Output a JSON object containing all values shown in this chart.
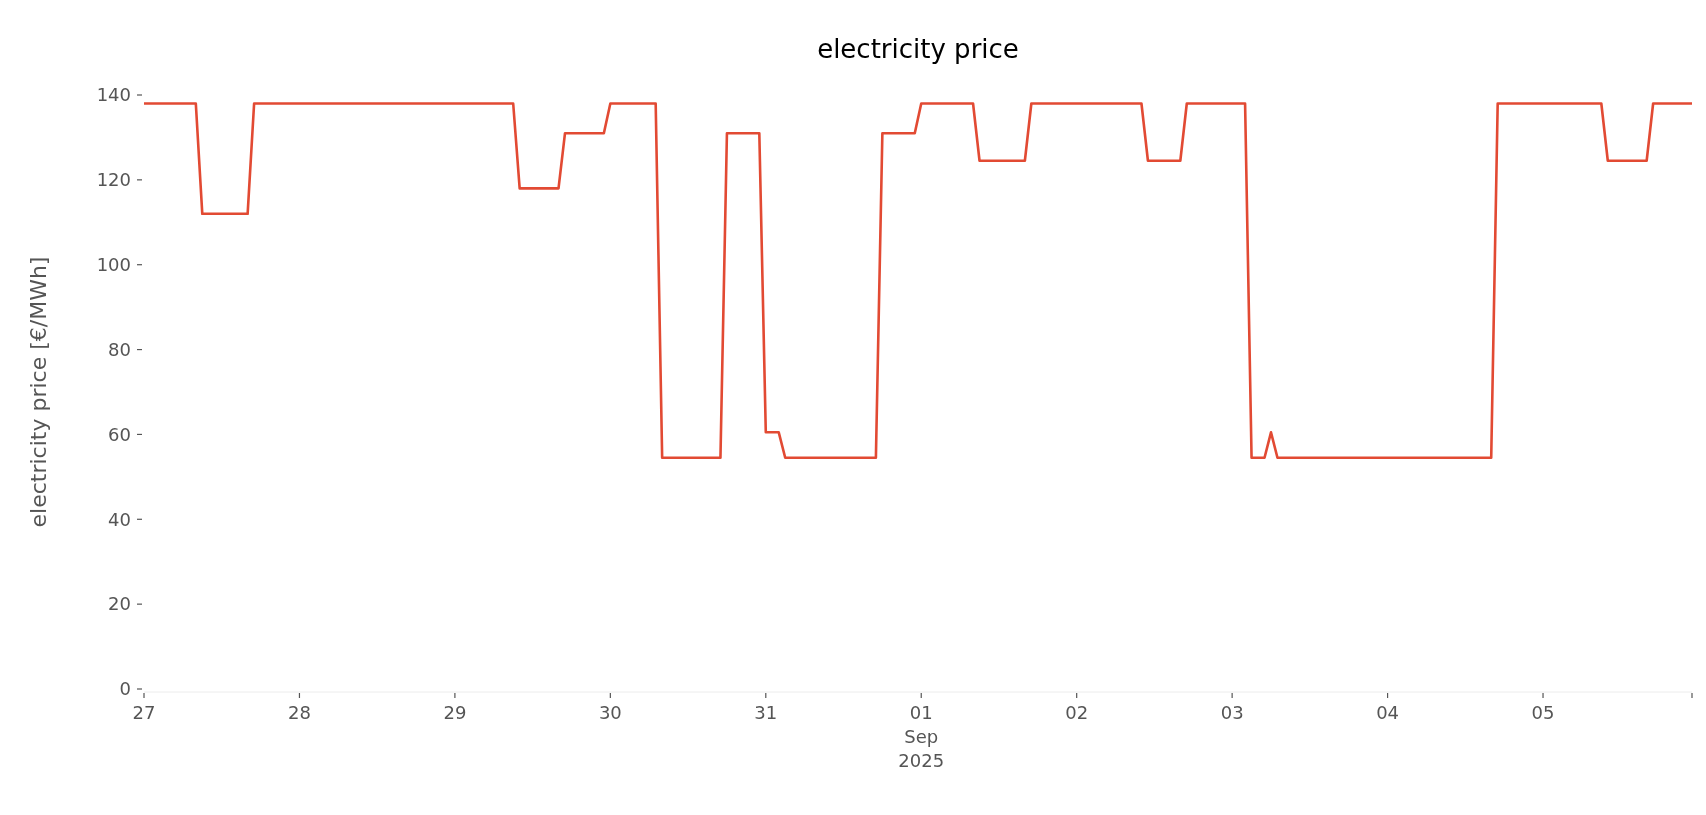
{
  "chart_data": {
    "type": "line",
    "title": "electricity price",
    "ylabel": "electricity price [€/MWh]",
    "x": [
      "2025-08-27T00:00",
      "2025-08-27T08:00",
      "2025-08-27T09:00",
      "2025-08-27T16:00",
      "2025-08-27T17:00",
      "2025-08-29T09:00",
      "2025-08-29T10:00",
      "2025-08-29T16:00",
      "2025-08-29T17:00",
      "2025-08-29T23:00",
      "2025-08-30T00:00",
      "2025-08-30T07:00",
      "2025-08-30T08:00",
      "2025-08-30T17:00",
      "2025-08-30T18:00",
      "2025-08-30T23:00",
      "2025-08-31T00:00",
      "2025-08-31T02:00",
      "2025-08-31T03:00",
      "2025-08-31T17:00",
      "2025-08-31T18:00",
      "2025-08-31T23:00",
      "2025-09-01T00:00",
      "2025-09-01T08:00",
      "2025-09-01T09:00",
      "2025-09-01T16:00",
      "2025-09-01T17:00",
      "2025-09-02T10:00",
      "2025-09-02T11:00",
      "2025-09-02T16:00",
      "2025-09-02T17:00",
      "2025-09-03T02:00",
      "2025-09-03T03:00",
      "2025-09-03T05:00",
      "2025-09-03T06:00",
      "2025-09-03T07:00",
      "2025-09-04T16:00",
      "2025-09-04T17:00",
      "2025-09-05T09:00",
      "2025-09-05T10:00",
      "2025-09-05T16:00",
      "2025-09-05T17:00",
      "2025-09-05T23:00"
    ],
    "series": [
      {
        "color": "#e24a33",
        "values": [
          138,
          138,
          112,
          112,
          138,
          138,
          118,
          118,
          131,
          131,
          138,
          138,
          54.5,
          54.5,
          131,
          131,
          60.5,
          60.5,
          54.5,
          54.5,
          131,
          131,
          138,
          138,
          124.5,
          124.5,
          138,
          138,
          124.5,
          124.5,
          138,
          138,
          54.5,
          54.5,
          60.5,
          54.5,
          54.5,
          138,
          138,
          124.5,
          124.5,
          138,
          138
        ]
      }
    ],
    "xlim": [
      "2025-08-27T00:00",
      "2025-09-05T23:00"
    ],
    "xticks": [
      {
        "value": "2025-08-27",
        "label": "27"
      },
      {
        "value": "2025-08-28",
        "label": "28"
      },
      {
        "value": "2025-08-29",
        "label": "29"
      },
      {
        "value": "2025-08-30",
        "label": "30"
      },
      {
        "value": "2025-08-31",
        "label": "31"
      },
      {
        "value": "2025-09-01",
        "label": "01\nSep\n2025"
      },
      {
        "value": "2025-09-02",
        "label": "02"
      },
      {
        "value": "2025-09-03",
        "label": "03"
      },
      {
        "value": "2025-09-04",
        "label": "04"
      },
      {
        "value": "2025-09-05",
        "label": "05"
      },
      {
        "value": "2025-09-05T23:00",
        "label": null
      }
    ],
    "ylim": [
      0,
      140
    ],
    "yticks": [
      0,
      20,
      40,
      60,
      80,
      100,
      120,
      140
    ],
    "grid": false,
    "marker": "none",
    "line_style": "solid"
  }
}
